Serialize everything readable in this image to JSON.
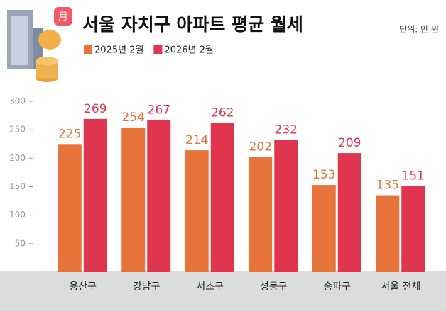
{
  "chart_data": {
    "type": "bar",
    "title": "서울 자치구 아파트 평균 월세",
    "unit": "단위: 만 원",
    "icon_text": "月",
    "categories": [
      "용산구",
      "강남구",
      "서초구",
      "성동구",
      "송파구",
      "서울 전체"
    ],
    "series": [
      {
        "name": "2025년 2월",
        "color": "#e8743b",
        "values": [
          225,
          254,
          214,
          202,
          153,
          135
        ]
      },
      {
        "name": "2026년 2월",
        "color": "#e0354f",
        "values": [
          269,
          267,
          262,
          232,
          209,
          151
        ]
      }
    ],
    "ylim": [
      0,
      300
    ],
    "yticks": [
      50,
      100,
      150,
      200,
      250,
      300
    ],
    "grid": false
  }
}
